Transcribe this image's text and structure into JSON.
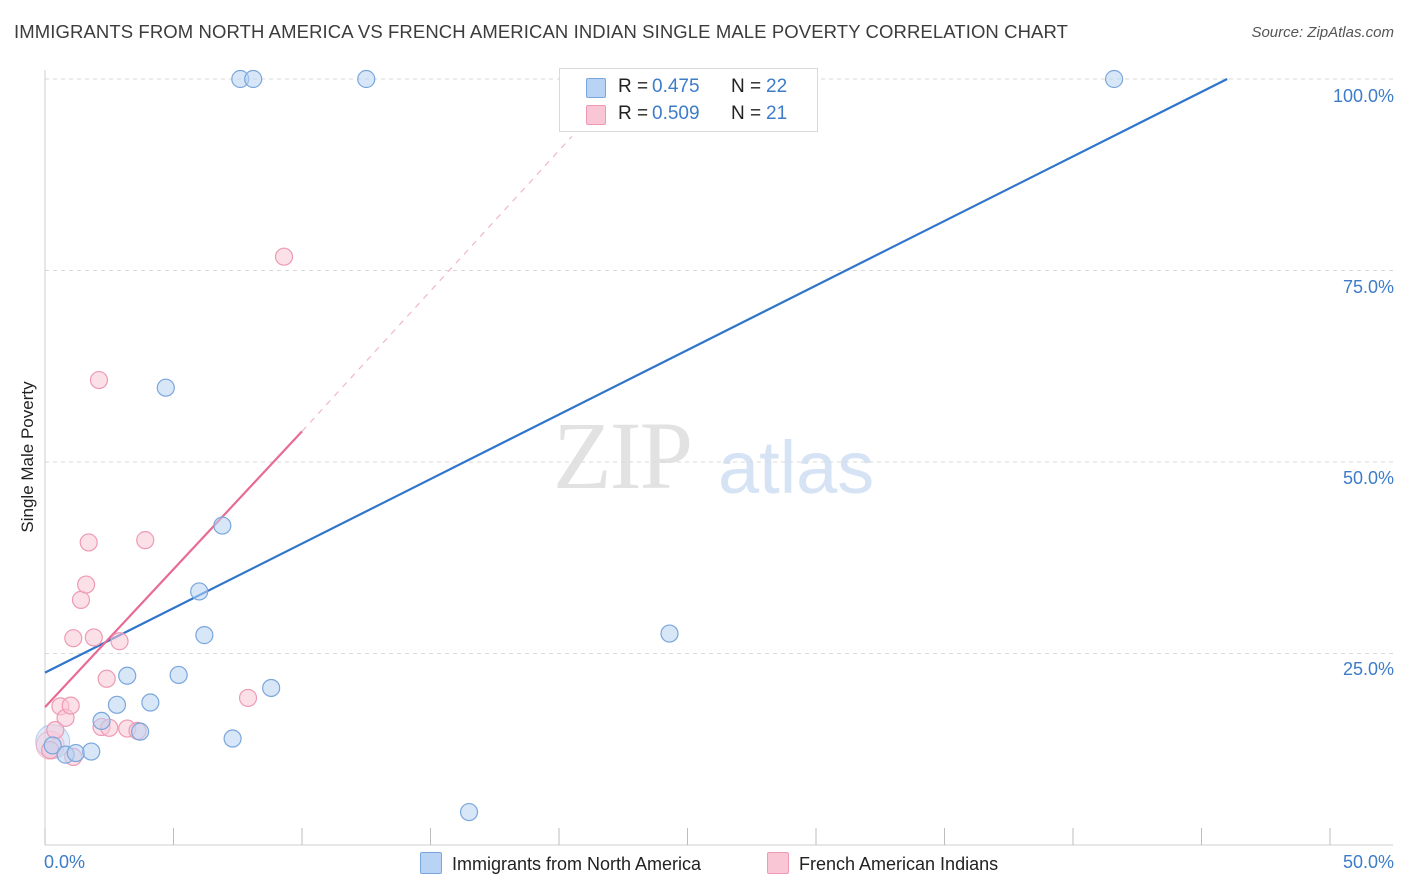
{
  "title": "IMMIGRANTS FROM NORTH AMERICA VS FRENCH AMERICAN INDIAN SINGLE MALE POVERTY CORRELATION CHART",
  "source": "Source: ZipAtlas.com",
  "watermark": {
    "zip": "ZIP",
    "atlas": "atlas"
  },
  "colors": {
    "blue_fill": "#b8d3f3",
    "blue_stroke": "#7aa6dc",
    "blue_line": "#2f75c9",
    "pink_fill": "#f9c6d5",
    "pink_stroke": "#ee9ab5",
    "pink_line": "#e86b94",
    "label_blue": "#3d7cc9",
    "grid": "#d9d9d9"
  },
  "legend": {
    "rows": [
      {
        "r_label": "R =",
        "r_value": "0.475",
        "n_label": "N =",
        "n_value": "22"
      },
      {
        "r_label": "R =",
        "r_value": "0.509",
        "n_label": "N =",
        "n_value": "21"
      }
    ]
  },
  "bottom_legend": [
    "Immigrants from North America",
    "French American Indians"
  ],
  "chart_data": {
    "type": "scatter",
    "title": "IMMIGRANTS FROM NORTH AMERICA VS FRENCH AMERICAN INDIAN SINGLE MALE POVERTY CORRELATION CHART",
    "xlabel": "",
    "ylabel": "Single Male Poverty",
    "xlim": [
      0,
      50
    ],
    "ylim": [
      0,
      102.5
    ],
    "x_tick_labels": [
      "0.0%",
      "50.0%"
    ],
    "y_tick_labels": [
      "100.0%",
      "75.0%",
      "50.0%",
      "25.0%"
    ],
    "y_ticks": [
      100,
      75,
      50,
      25
    ],
    "series": [
      {
        "name": "Immigrants from North America",
        "R": 0.475,
        "N": 22,
        "points": [
          [
            0.3,
            13.0
          ],
          [
            0.8,
            11.8
          ],
          [
            1.2,
            12.0
          ],
          [
            1.8,
            12.2
          ],
          [
            2.2,
            16.2
          ],
          [
            2.8,
            18.3
          ],
          [
            3.2,
            22.1
          ],
          [
            3.7,
            14.8
          ],
          [
            4.1,
            18.6
          ],
          [
            4.7,
            59.7
          ],
          [
            5.2,
            22.2
          ],
          [
            6.0,
            33.1
          ],
          [
            6.2,
            27.4
          ],
          [
            6.9,
            41.7
          ],
          [
            7.3,
            13.9
          ],
          [
            7.6,
            100.0
          ],
          [
            8.1,
            100.0
          ],
          [
            8.8,
            20.5
          ],
          [
            12.5,
            100.0
          ],
          [
            16.5,
            4.3
          ],
          [
            24.3,
            27.6
          ],
          [
            41.6,
            100.0
          ]
        ],
        "trend": {
          "x": [
            0.0,
            46.0
          ],
          "y": [
            22.5,
            100.0
          ],
          "style": "solid"
        }
      },
      {
        "name": "French American Indians",
        "R": 0.509,
        "N": 21,
        "points": [
          [
            0.2,
            12.4
          ],
          [
            0.4,
            15.0
          ],
          [
            0.6,
            18.1
          ],
          [
            0.8,
            16.6
          ],
          [
            1.0,
            18.2
          ],
          [
            1.1,
            11.5
          ],
          [
            1.1,
            27.0
          ],
          [
            1.4,
            32.0
          ],
          [
            1.6,
            34.0
          ],
          [
            1.7,
            39.5
          ],
          [
            1.9,
            27.1
          ],
          [
            2.1,
            60.7
          ],
          [
            2.2,
            15.4
          ],
          [
            2.4,
            21.7
          ],
          [
            2.5,
            15.3
          ],
          [
            2.9,
            26.6
          ],
          [
            3.2,
            15.2
          ],
          [
            3.9,
            39.8
          ],
          [
            7.9,
            19.2
          ],
          [
            9.3,
            76.8
          ],
          [
            3.6,
            14.9
          ]
        ],
        "trend_solid": {
          "x": [
            0.0,
            10.0
          ],
          "y": [
            18.0,
            54.0
          ]
        },
        "trend_dashed": {
          "x": [
            10.0,
            20.5
          ],
          "y": [
            54.0,
            92.5
          ]
        }
      }
    ],
    "grid": "horizontal-dashed",
    "legend_placement": "top-center"
  }
}
